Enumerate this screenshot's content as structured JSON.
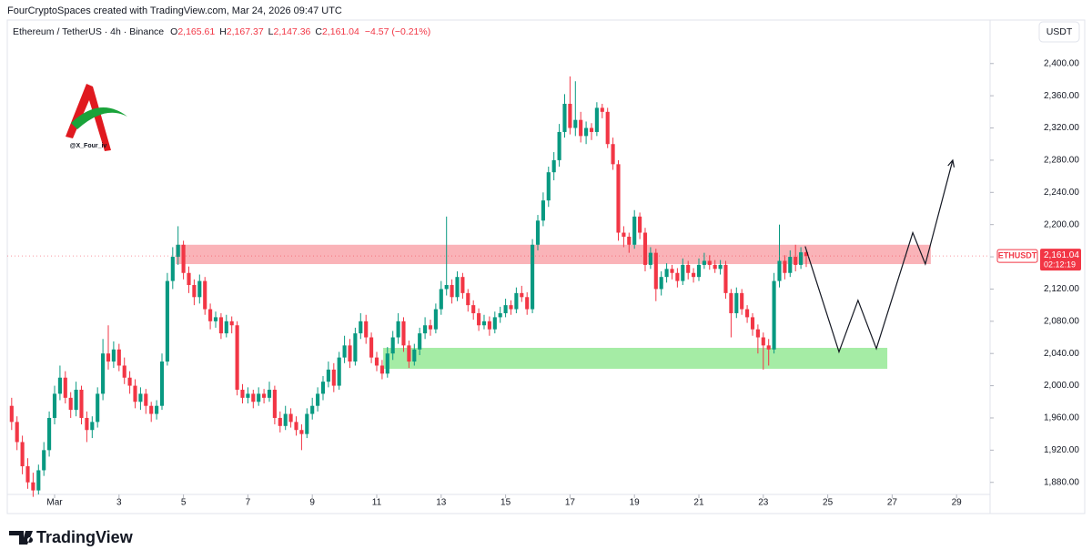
{
  "header": "FourCryptoSpaces created with TradingView.com, Mar 24, 2026 09:47 UTC",
  "legend": {
    "symbol": "Ethereum / TetherUS · 4h · Binance",
    "items": [
      {
        "key": "O",
        "value": "2,165.61"
      },
      {
        "key": "H",
        "value": "2,167.37"
      },
      {
        "key": "L",
        "value": "2,147.36"
      },
      {
        "key": "C",
        "value": "2,161.04"
      }
    ],
    "change": "−4.57 (−0.21%)"
  },
  "currency": "USDT",
  "watermark": "@X_Four_iv",
  "footer": "TradingView",
  "chart_data": {
    "type": "candlestick",
    "up_color": "#089981",
    "down_color": "#f23645",
    "xlim": [
      -0.469,
      30.04
    ],
    "xticks": [
      {
        "value": 1,
        "label": "Mar"
      },
      3,
      5,
      7,
      9,
      11,
      13,
      15,
      17,
      19,
      21,
      23,
      25,
      27,
      29
    ],
    "ylim": [
      1865,
      2454
    ],
    "yticks": [
      {
        "value": 1880,
        "label": "1,880.00"
      },
      {
        "value": 1920,
        "label": "1,920.00"
      },
      {
        "value": 1960,
        "label": "1,960.00"
      },
      {
        "value": 2000,
        "label": "2,000.00"
      },
      {
        "value": 2040,
        "label": "2,040.00"
      },
      {
        "value": 2080,
        "label": "2,080.00"
      },
      {
        "value": 2120,
        "label": "2,120.00"
      },
      {
        "value": 2160,
        "label": "2,160.00"
      },
      {
        "value": 2200,
        "label": "2,200.00"
      },
      {
        "value": 2240,
        "label": "2,240.00"
      },
      {
        "value": 2280,
        "label": "2,280.00"
      },
      {
        "value": 2320,
        "label": "2,320.00"
      },
      {
        "value": 2360,
        "label": "2,360.00"
      },
      {
        "value": 2400,
        "label": "2,400.00"
      }
    ],
    "x": [
      -0.333,
      -0.167,
      0,
      0.167,
      0.333,
      0.5,
      0.667,
      0.833,
      1,
      1.167,
      1.333,
      1.5,
      1.667,
      1.833,
      2,
      2.167,
      2.333,
      2.5,
      2.667,
      2.833,
      3,
      3.167,
      3.333,
      3.5,
      3.667,
      3.833,
      4,
      4.167,
      4.333,
      4.5,
      4.667,
      4.833,
      5,
      5.167,
      5.333,
      5.5,
      5.667,
      5.833,
      6,
      6.167,
      6.333,
      6.5,
      6.667,
      6.833,
      7,
      7.167,
      7.333,
      7.5,
      7.667,
      7.833,
      8,
      8.167,
      8.333,
      8.5,
      8.667,
      8.833,
      9,
      9.167,
      9.333,
      9.5,
      9.667,
      9.833,
      10,
      10.167,
      10.333,
      10.5,
      10.667,
      10.833,
      11,
      11.167,
      11.333,
      11.5,
      11.667,
      11.833,
      12,
      12.167,
      12.333,
      12.5,
      12.667,
      12.833,
      13,
      13.167,
      13.333,
      13.5,
      13.667,
      13.833,
      14,
      14.167,
      14.333,
      14.5,
      14.667,
      14.833,
      15,
      15.167,
      15.333,
      15.5,
      15.667,
      15.833,
      16,
      16.167,
      16.333,
      16.5,
      16.667,
      16.833,
      17,
      17.167,
      17.333,
      17.5,
      17.667,
      17.833,
      18,
      18.167,
      18.333,
      18.5,
      18.667,
      18.833,
      19,
      19.167,
      19.333,
      19.5,
      19.667,
      19.833,
      20,
      20.167,
      20.333,
      20.5,
      20.667,
      20.833,
      21,
      21.167,
      21.333,
      21.5,
      21.667,
      21.833,
      22,
      22.167,
      22.333,
      22.5,
      22.667,
      22.833,
      23,
      23.167,
      23.333,
      23.5,
      23.667,
      23.833,
      24,
      24.167,
      24.333
    ],
    "ohlc": [
      [
        1975,
        1985,
        1945,
        1955
      ],
      [
        1955,
        1962,
        1920,
        1930
      ],
      [
        1930,
        1938,
        1890,
        1900
      ],
      [
        1900,
        1910,
        1872,
        1880
      ],
      [
        1880,
        1892,
        1862,
        1870
      ],
      [
        1870,
        1902,
        1865,
        1895
      ],
      [
        1895,
        1930,
        1888,
        1920
      ],
      [
        1920,
        1968,
        1912,
        1960
      ],
      [
        1960,
        2000,
        1952,
        1990
      ],
      [
        1990,
        2025,
        1982,
        2010
      ],
      [
        2010,
        2018,
        1978,
        1985
      ],
      [
        1985,
        1992,
        1960,
        1970
      ],
      [
        1970,
        2005,
        1962,
        1995
      ],
      [
        1995,
        2000,
        1952,
        1960
      ],
      [
        1960,
        1968,
        1930,
        1945
      ],
      [
        1945,
        1962,
        1935,
        1955
      ],
      [
        1955,
        1998,
        1948,
        1990
      ],
      [
        1990,
        2058,
        1982,
        2040
      ],
      [
        2040,
        2075,
        2020,
        2030
      ],
      [
        2030,
        2055,
        2022,
        2045
      ],
      [
        2045,
        2052,
        2018,
        2025
      ],
      [
        2025,
        2035,
        2002,
        2010
      ],
      [
        2010,
        2018,
        1990,
        2000
      ],
      [
        2000,
        2008,
        1972,
        1980
      ],
      [
        1980,
        1998,
        1970,
        1990
      ],
      [
        1990,
        1996,
        1965,
        1975
      ],
      [
        1975,
        1980,
        1955,
        1965
      ],
      [
        1965,
        1982,
        1958,
        1975
      ],
      [
        1975,
        2040,
        1970,
        2030
      ],
      [
        2030,
        2140,
        2025,
        2130
      ],
      [
        2130,
        2172,
        2120,
        2160
      ],
      [
        2160,
        2198,
        2150,
        2175
      ],
      [
        2175,
        2180,
        2132,
        2140
      ],
      [
        2140,
        2148,
        2115,
        2125
      ],
      [
        2125,
        2132,
        2100,
        2110
      ],
      [
        2110,
        2138,
        2102,
        2130
      ],
      [
        2130,
        2135,
        2088,
        2095
      ],
      [
        2095,
        2102,
        2070,
        2080
      ],
      [
        2080,
        2092,
        2072,
        2085
      ],
      [
        2085,
        2090,
        2058,
        2065
      ],
      [
        2065,
        2088,
        2060,
        2080
      ],
      [
        2080,
        2086,
        2065,
        2075
      ],
      [
        2075,
        2080,
        1988,
        1995
      ],
      [
        1995,
        2002,
        1978,
        1985
      ],
      [
        1985,
        1998,
        1978,
        1990
      ],
      [
        1990,
        1995,
        1972,
        1980
      ],
      [
        1980,
        1998,
        1975,
        1990
      ],
      [
        1990,
        1996,
        1978,
        1985
      ],
      [
        1985,
        2005,
        1980,
        1995
      ],
      [
        1995,
        2000,
        1952,
        1960
      ],
      [
        1960,
        1968,
        1942,
        1950
      ],
      [
        1950,
        1975,
        1945,
        1965
      ],
      [
        1965,
        1972,
        1948,
        1955
      ],
      [
        1955,
        1962,
        1938,
        1945
      ],
      [
        1945,
        1952,
        1920,
        1940
      ],
      [
        1940,
        1972,
        1935,
        1965
      ],
      [
        1965,
        1985,
        1958,
        1975
      ],
      [
        1975,
        1998,
        1968,
        1990
      ],
      [
        1990,
        2012,
        1982,
        2005
      ],
      [
        2005,
        2030,
        1998,
        2020
      ],
      [
        2020,
        2028,
        1992,
        2000
      ],
      [
        2000,
        2042,
        1995,
        2035
      ],
      [
        2035,
        2062,
        2028,
        2050
      ],
      [
        2050,
        2058,
        2022,
        2030
      ],
      [
        2030,
        2072,
        2025,
        2065
      ],
      [
        2065,
        2090,
        2058,
        2080
      ],
      [
        2080,
        2088,
        2052,
        2060
      ],
      [
        2060,
        2066,
        2028,
        2035
      ],
      [
        2035,
        2042,
        2018,
        2025
      ],
      [
        2025,
        2032,
        2008,
        2015
      ],
      [
        2015,
        2048,
        2010,
        2040
      ],
      [
        2040,
        2068,
        2032,
        2060
      ],
      [
        2060,
        2090,
        2052,
        2080
      ],
      [
        2080,
        2085,
        2042,
        2050
      ],
      [
        2050,
        2056,
        2022,
        2030
      ],
      [
        2030,
        2052,
        2025,
        2045
      ],
      [
        2045,
        2072,
        2038,
        2065
      ],
      [
        2065,
        2085,
        2058,
        2075
      ],
      [
        2075,
        2082,
        2062,
        2070
      ],
      [
        2070,
        2102,
        2065,
        2095
      ],
      [
        2095,
        2130,
        2088,
        2120
      ],
      [
        2120,
        2210,
        2112,
        2125
      ],
      [
        2125,
        2132,
        2102,
        2110
      ],
      [
        2110,
        2142,
        2105,
        2135
      ],
      [
        2135,
        2140,
        2108,
        2115
      ],
      [
        2115,
        2120,
        2092,
        2100
      ],
      [
        2100,
        2106,
        2082,
        2090
      ],
      [
        2090,
        2096,
        2068,
        2075
      ],
      [
        2075,
        2088,
        2070,
        2080
      ],
      [
        2080,
        2086,
        2062,
        2070
      ],
      [
        2070,
        2092,
        2065,
        2085
      ],
      [
        2085,
        2098,
        2078,
        2090
      ],
      [
        2090,
        2108,
        2085,
        2100
      ],
      [
        2100,
        2106,
        2088,
        2095
      ],
      [
        2095,
        2122,
        2090,
        2115
      ],
      [
        2115,
        2124,
        2104,
        2110
      ],
      [
        2110,
        2116,
        2088,
        2095
      ],
      [
        2095,
        2182,
        2090,
        2175
      ],
      [
        2175,
        2212,
        2168,
        2205
      ],
      [
        2205,
        2240,
        2198,
        2230
      ],
      [
        2230,
        2272,
        2222,
        2265
      ],
      [
        2265,
        2290,
        2255,
        2280
      ],
      [
        2280,
        2325,
        2272,
        2315
      ],
      [
        2315,
        2362,
        2308,
        2350
      ],
      [
        2350,
        2384,
        2312,
        2320
      ],
      [
        2320,
        2378,
        2310,
        2330
      ],
      [
        2330,
        2340,
        2302,
        2310
      ],
      [
        2310,
        2328,
        2300,
        2320
      ],
      [
        2320,
        2326,
        2305,
        2315
      ],
      [
        2315,
        2352,
        2310,
        2345
      ],
      [
        2345,
        2350,
        2332,
        2340
      ],
      [
        2340,
        2345,
        2295,
        2300
      ],
      [
        2300,
        2308,
        2268,
        2275
      ],
      [
        2275,
        2280,
        2180,
        2190
      ],
      [
        2190,
        2198,
        2172,
        2185
      ],
      [
        2185,
        2190,
        2165,
        2175
      ],
      [
        2175,
        2218,
        2170,
        2210
      ],
      [
        2210,
        2215,
        2182,
        2190
      ],
      [
        2190,
        2196,
        2142,
        2150
      ],
      [
        2150,
        2172,
        2145,
        2165
      ],
      [
        2165,
        2170,
        2105,
        2120
      ],
      [
        2120,
        2142,
        2112,
        2135
      ],
      [
        2135,
        2152,
        2128,
        2145
      ],
      [
        2145,
        2150,
        2132,
        2140
      ],
      [
        2140,
        2146,
        2122,
        2130
      ],
      [
        2130,
        2158,
        2125,
        2150
      ],
      [
        2150,
        2155,
        2132,
        2140
      ],
      [
        2140,
        2146,
        2128,
        2135
      ],
      [
        2135,
        2158,
        2130,
        2150
      ],
      [
        2150,
        2165,
        2145,
        2155
      ],
      [
        2155,
        2162,
        2144,
        2150
      ],
      [
        2150,
        2156,
        2140,
        2145
      ],
      [
        2145,
        2156,
        2138,
        2150
      ],
      [
        2150,
        2155,
        2108,
        2115
      ],
      [
        2115,
        2120,
        2060,
        2090
      ],
      [
        2090,
        2122,
        2084,
        2115
      ],
      [
        2115,
        2120,
        2088,
        2095
      ],
      [
        2095,
        2100,
        2078,
        2085
      ],
      [
        2085,
        2090,
        2062,
        2070
      ],
      [
        2070,
        2076,
        2040,
        2060
      ],
      [
        2060,
        2066,
        2020,
        2050
      ],
      [
        2050,
        2058,
        2025,
        2045
      ],
      [
        2045,
        2140,
        2040,
        2130
      ],
      [
        2130,
        2200,
        2122,
        2155
      ],
      [
        2155,
        2162,
        2132,
        2140
      ],
      [
        2140,
        2168,
        2135,
        2160
      ],
      [
        2160,
        2175,
        2142,
        2150
      ],
      [
        2150,
        2172,
        2145,
        2165.61
      ],
      [
        2165.61,
        2167.37,
        2147.36,
        2161.04
      ]
    ],
    "zones": [
      {
        "x": [
          4.76,
          28.2
        ],
        "y": [
          2151,
          2175
        ],
        "color": "rgba(242,54,69,0.38)"
      },
      {
        "x": [
          11.2,
          26.85
        ],
        "y": [
          2021,
          2047
        ],
        "color": "rgba(76,217,76,0.5)"
      }
    ],
    "projection": {
      "x": [
        24.3,
        25.35,
        25.94,
        26.51,
        27.64,
        28.03,
        28.88
      ],
      "y": [
        2173,
        2042,
        2106,
        2046,
        2190,
        2151,
        2280
      ]
    },
    "price_tag": {
      "symbol": "ETHUSDT",
      "price": {
        "value": 2161.04,
        "label": "2,161.04"
      },
      "countdown": "02:12:19",
      "color": "#f23645"
    }
  }
}
